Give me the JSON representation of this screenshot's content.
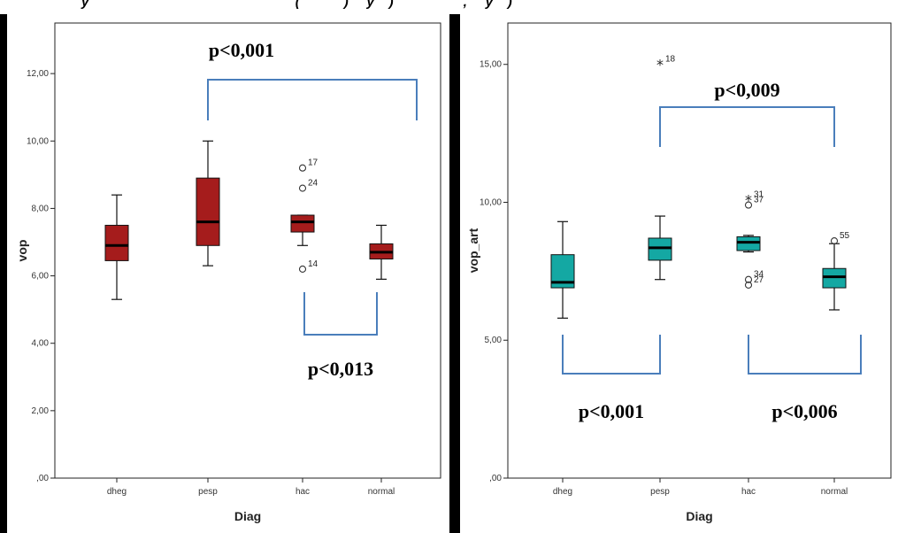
{
  "header": {
    "partial_text": "y                                                        (            )     y    )                   ,     y    )"
  },
  "chart_data": [
    {
      "type": "box",
      "xlabel": "Diag",
      "ylabel": "vop",
      "ylim": [
        0,
        13.5
      ],
      "yticks": [
        0,
        2,
        4,
        6,
        8,
        10,
        12
      ],
      "ytick_labels": [
        ",00",
        "2,00",
        "4,00",
        "6,00",
        "8,00",
        "10,00",
        "12,00"
      ],
      "categories": [
        "dheg",
        "pesp",
        "hac",
        "normal"
      ],
      "box_color": "#a51c1c",
      "boxes": [
        {
          "category": "dheg",
          "whisker_low": 5.3,
          "q1": 6.45,
          "median": 6.9,
          "q3": 7.5,
          "whisker_high": 8.4
        },
        {
          "category": "pesp",
          "whisker_low": 6.3,
          "q1": 6.9,
          "median": 7.6,
          "q3": 8.9,
          "whisker_high": 10.0
        },
        {
          "category": "hac",
          "whisker_low": 6.9,
          "q1": 7.3,
          "median": 7.6,
          "q3": 7.8,
          "whisker_high": 7.8
        },
        {
          "category": "normal",
          "whisker_low": 5.9,
          "q1": 6.5,
          "median": 6.7,
          "q3": 6.95,
          "whisker_high": 7.5
        }
      ],
      "outliers": [
        {
          "category": "hac",
          "value": 9.2,
          "label": "17",
          "marker": "circle"
        },
        {
          "category": "hac",
          "value": 8.6,
          "label": "24",
          "marker": "circle"
        },
        {
          "category": "hac",
          "value": 6.2,
          "label": "14",
          "marker": "circle"
        }
      ],
      "comparisons": [
        {
          "from": "pesp",
          "to": "normal",
          "text": "p<0,001",
          "side": "above"
        },
        {
          "from": "hac",
          "to": "normal",
          "text": "p<0,013",
          "side": "below"
        }
      ]
    },
    {
      "type": "box",
      "xlabel": "Diag",
      "ylabel": "vop_art",
      "ylim": [
        0,
        16.5
      ],
      "yticks": [
        0,
        5,
        10,
        15
      ],
      "ytick_labels": [
        ",00",
        "5,00",
        "10,00",
        "15,00"
      ],
      "categories": [
        "dheg",
        "pesp",
        "hac",
        "normal"
      ],
      "box_color": "#14a8a3",
      "boxes": [
        {
          "category": "dheg",
          "whisker_low": 5.8,
          "q1": 6.9,
          "median": 7.1,
          "q3": 8.1,
          "whisker_high": 9.3
        },
        {
          "category": "pesp",
          "whisker_low": 7.2,
          "q1": 7.9,
          "median": 8.35,
          "q3": 8.7,
          "whisker_high": 9.5
        },
        {
          "category": "hac",
          "whisker_low": 8.2,
          "q1": 8.25,
          "median": 8.55,
          "q3": 8.75,
          "whisker_high": 8.8
        },
        {
          "category": "normal",
          "whisker_low": 6.1,
          "q1": 6.9,
          "median": 7.3,
          "q3": 7.6,
          "whisker_high": 8.5
        }
      ],
      "outliers": [
        {
          "category": "pesp",
          "value": 15.0,
          "label": "18",
          "marker": "star"
        },
        {
          "category": "hac",
          "value": 10.1,
          "label": "31",
          "marker": "star"
        },
        {
          "category": "hac",
          "value": 9.9,
          "label": "37",
          "marker": "circle"
        },
        {
          "category": "hac",
          "value": 7.2,
          "label": "34",
          "marker": "circle"
        },
        {
          "category": "hac",
          "value": 7.0,
          "label": "27",
          "marker": "circle"
        },
        {
          "category": "normal",
          "value": 8.6,
          "label": "55",
          "marker": "circle"
        }
      ],
      "comparisons": [
        {
          "from": "pesp",
          "to": "normal",
          "text": "p<0,009",
          "side": "above"
        },
        {
          "from": "dheg",
          "to": "pesp",
          "text": "p<0,001",
          "side": "below"
        },
        {
          "from": "hac",
          "to": "normal",
          "text": "p<0,006",
          "side": "below"
        }
      ]
    }
  ]
}
